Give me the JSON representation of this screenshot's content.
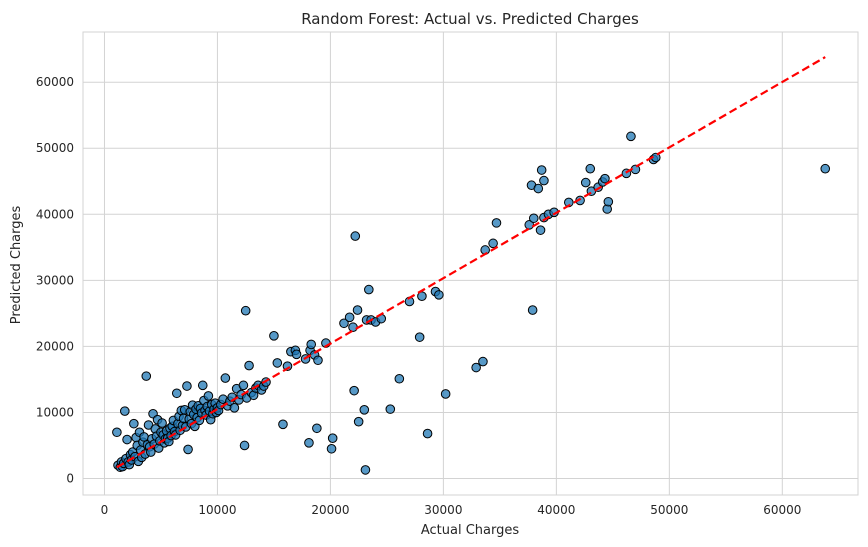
{
  "chart_data": {
    "type": "scatter",
    "title": "Random Forest: Actual vs. Predicted Charges",
    "xlabel": "Actual Charges",
    "ylabel": "Predicted Charges",
    "xlim": [
      -1900,
      66700
    ],
    "ylim": [
      -2500,
      67600
    ],
    "xticks": [
      0,
      10000,
      20000,
      30000,
      40000,
      50000,
      60000
    ],
    "yticks": [
      0,
      10000,
      20000,
      30000,
      40000,
      50000,
      60000
    ],
    "xtick_labels": [
      "0",
      "10000",
      "20000",
      "30000",
      "40000",
      "50000",
      "60000"
    ],
    "ytick_labels": [
      "0",
      "10000",
      "20000",
      "30000",
      "40000",
      "50000",
      "60000"
    ],
    "grid": true,
    "colors": {
      "marker": "#1f77b4",
      "marker_edge": "#000000",
      "reference_line": "#ff0000",
      "grid": "#d3d3d3"
    },
    "reference_line": {
      "label": "",
      "style": "dashed",
      "from": [
        1100,
        1700
      ],
      "to": [
        63800,
        63800
      ]
    },
    "series": [
      {
        "points": [
          [
            1100,
            7000
          ],
          [
            1200,
            2000
          ],
          [
            1400,
            1700
          ],
          [
            1500,
            2500
          ],
          [
            1600,
            1800
          ],
          [
            1700,
            2300
          ],
          [
            1800,
            10200
          ],
          [
            1900,
            3000
          ],
          [
            2000,
            5900
          ],
          [
            2100,
            2500
          ],
          [
            2200,
            2100
          ],
          [
            2300,
            3600
          ],
          [
            2400,
            2800
          ],
          [
            2500,
            4000
          ],
          [
            2600,
            8300
          ],
          [
            2700,
            3300
          ],
          [
            2800,
            6200
          ],
          [
            2900,
            5000
          ],
          [
            3000,
            2600
          ],
          [
            3100,
            7000
          ],
          [
            3200,
            4300
          ],
          [
            3300,
            3200
          ],
          [
            3400,
            5500
          ],
          [
            3500,
            6300
          ],
          [
            3600,
            3700
          ],
          [
            3700,
            15500
          ],
          [
            3800,
            5100
          ],
          [
            3900,
            8100
          ],
          [
            4000,
            4800
          ],
          [
            4100,
            4000
          ],
          [
            4200,
            6000
          ],
          [
            4300,
            9800
          ],
          [
            4400,
            5200
          ],
          [
            4500,
            7500
          ],
          [
            4600,
            6400
          ],
          [
            4700,
            8900
          ],
          [
            4800,
            4600
          ],
          [
            4900,
            5700
          ],
          [
            5000,
            7000
          ],
          [
            5100,
            8400
          ],
          [
            5200,
            6600
          ],
          [
            5300,
            5400
          ],
          [
            5400,
            6000
          ],
          [
            5500,
            7200
          ],
          [
            5600,
            6100
          ],
          [
            5700,
            5600
          ],
          [
            5800,
            7600
          ],
          [
            5900,
            6500
          ],
          [
            6000,
            7900
          ],
          [
            6100,
            8800
          ],
          [
            6200,
            7100
          ],
          [
            6300,
            6600
          ],
          [
            6400,
            12900
          ],
          [
            6500,
            8300
          ],
          [
            6600,
            9400
          ],
          [
            6700,
            7300
          ],
          [
            6800,
            10300
          ],
          [
            6900,
            8000
          ],
          [
            7000,
            9100
          ],
          [
            7100,
            10400
          ],
          [
            7200,
            7800
          ],
          [
            7300,
            14000
          ],
          [
            7400,
            4400
          ],
          [
            7500,
            9000
          ],
          [
            7600,
            10100
          ],
          [
            7700,
            8300
          ],
          [
            7800,
            11100
          ],
          [
            7900,
            9700
          ],
          [
            8000,
            7900
          ],
          [
            8100,
            10500
          ],
          [
            8200,
            9200
          ],
          [
            8300,
            11000
          ],
          [
            8400,
            8800
          ],
          [
            8500,
            10600
          ],
          [
            8600,
            9900
          ],
          [
            8700,
            14100
          ],
          [
            8800,
            11800
          ],
          [
            8900,
            10300
          ],
          [
            9000,
            9600
          ],
          [
            9100,
            10900
          ],
          [
            9200,
            12500
          ],
          [
            9300,
            10200
          ],
          [
            9400,
            8900
          ],
          [
            9500,
            11200
          ],
          [
            9600,
            9800
          ],
          [
            9700,
            10500
          ],
          [
            9800,
            11400
          ],
          [
            9900,
            10000
          ],
          [
            10000,
            10700
          ],
          [
            10100,
            10300
          ],
          [
            10300,
            11200
          ],
          [
            10500,
            12000
          ],
          [
            10700,
            15200
          ],
          [
            10900,
            11000
          ],
          [
            11100,
            11700
          ],
          [
            11300,
            12300
          ],
          [
            11500,
            10700
          ],
          [
            11700,
            13600
          ],
          [
            11900,
            11900
          ],
          [
            12100,
            12700
          ],
          [
            12300,
            14100
          ],
          [
            12400,
            5000
          ],
          [
            12500,
            25400
          ],
          [
            12600,
            12200
          ],
          [
            12800,
            17100
          ],
          [
            13000,
            13000
          ],
          [
            13200,
            12600
          ],
          [
            13400,
            13700
          ],
          [
            13600,
            14100
          ],
          [
            13900,
            13400
          ],
          [
            14100,
            14000
          ],
          [
            14300,
            14600
          ],
          [
            15000,
            21600
          ],
          [
            15300,
            17500
          ],
          [
            15800,
            8200
          ],
          [
            16200,
            17000
          ],
          [
            16500,
            19200
          ],
          [
            16900,
            19400
          ],
          [
            17000,
            18800
          ],
          [
            17800,
            18100
          ],
          [
            18100,
            5400
          ],
          [
            18200,
            19400
          ],
          [
            18300,
            20300
          ],
          [
            18600,
            18700
          ],
          [
            18800,
            7600
          ],
          [
            18900,
            17900
          ],
          [
            19600,
            20500
          ],
          [
            20100,
            4500
          ],
          [
            20200,
            6100
          ],
          [
            21200,
            23500
          ],
          [
            21700,
            24400
          ],
          [
            22000,
            22900
          ],
          [
            22100,
            13300
          ],
          [
            22200,
            36700
          ],
          [
            22400,
            25500
          ],
          [
            22500,
            8600
          ],
          [
            23000,
            10400
          ],
          [
            23100,
            1300
          ],
          [
            23200,
            24000
          ],
          [
            23400,
            28600
          ],
          [
            23600,
            24000
          ],
          [
            24000,
            23700
          ],
          [
            24500,
            24200
          ],
          [
            25300,
            10500
          ],
          [
            26100,
            15100
          ],
          [
            27000,
            26800
          ],
          [
            27900,
            21400
          ],
          [
            28100,
            27600
          ],
          [
            28600,
            6800
          ],
          [
            29300,
            28300
          ],
          [
            29600,
            27800
          ],
          [
            30200,
            12800
          ],
          [
            32900,
            16800
          ],
          [
            33500,
            17700
          ],
          [
            33700,
            34600
          ],
          [
            34400,
            35600
          ],
          [
            34700,
            38700
          ],
          [
            37600,
            38400
          ],
          [
            37800,
            44400
          ],
          [
            37900,
            25500
          ],
          [
            38000,
            39400
          ],
          [
            38400,
            43900
          ],
          [
            38600,
            37600
          ],
          [
            38700,
            46700
          ],
          [
            38900,
            45100
          ],
          [
            38900,
            39500
          ],
          [
            39300,
            40000
          ],
          [
            39800,
            40300
          ],
          [
            41100,
            41800
          ],
          [
            42100,
            42100
          ],
          [
            42600,
            44800
          ],
          [
            43000,
            46900
          ],
          [
            43100,
            43500
          ],
          [
            43700,
            44100
          ],
          [
            44100,
            44900
          ],
          [
            44300,
            45400
          ],
          [
            44500,
            40800
          ],
          [
            44600,
            41900
          ],
          [
            46200,
            46200
          ],
          [
            46600,
            51800
          ],
          [
            47000,
            46800
          ],
          [
            48600,
            48300
          ],
          [
            48800,
            48600
          ],
          [
            63800,
            46900
          ]
        ]
      }
    ]
  }
}
